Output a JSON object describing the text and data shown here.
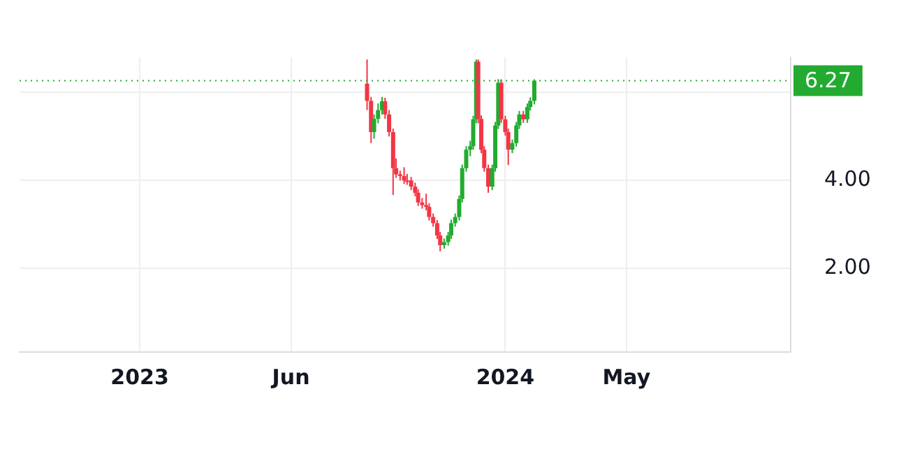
{
  "chart_data": {
    "type": "candlestick",
    "x": [
      "2023-08-16",
      "2023-08-20",
      "2023-08-23",
      "2023-08-27",
      "2023-08-31",
      "2023-09-03",
      "2023-09-07",
      "2023-09-11",
      "2023-09-14",
      "2023-09-18",
      "2023-09-22",
      "2023-09-25",
      "2023-09-29",
      "2023-10-03",
      "2023-10-06",
      "2023-10-10",
      "2023-10-14",
      "2023-10-17",
      "2023-10-21",
      "2023-10-25",
      "2023-10-28",
      "2023-11-01",
      "2023-11-05",
      "2023-11-08",
      "2023-11-12",
      "2023-11-16",
      "2023-11-19",
      "2023-11-23",
      "2023-11-27",
      "2023-11-30",
      "2023-12-03",
      "2023-12-05",
      "2023-12-08",
      "2023-12-11",
      "2023-12-15",
      "2023-12-19",
      "2023-12-22",
      "2023-12-25",
      "2023-12-28",
      "2024-01-01",
      "2024-01-04",
      "2024-01-08",
      "2024-01-12",
      "2024-01-15",
      "2024-01-19",
      "2024-01-23",
      "2024-01-26",
      "2024-01-30"
    ],
    "ohlc": [
      [
        6.2,
        6.75,
        5.6,
        5.81
      ],
      [
        5.81,
        5.9,
        4.85,
        5.1
      ],
      [
        5.1,
        5.5,
        4.95,
        5.4
      ],
      [
        5.4,
        5.75,
        5.3,
        5.6
      ],
      [
        5.6,
        5.9,
        5.5,
        5.8
      ],
      [
        5.8,
        5.88,
        5.4,
        5.5
      ],
      [
        5.5,
        5.6,
        5.0,
        5.1
      ],
      [
        5.1,
        5.18,
        3.67,
        4.28
      ],
      [
        4.28,
        4.5,
        4.06,
        4.14
      ],
      [
        4.14,
        4.22,
        4.0,
        4.1
      ],
      [
        4.1,
        4.3,
        3.92,
        4.0
      ],
      [
        4.0,
        4.15,
        3.9,
        4.0
      ],
      [
        4.0,
        4.08,
        3.78,
        3.86
      ],
      [
        3.86,
        3.95,
        3.64,
        3.72
      ],
      [
        3.72,
        3.8,
        3.42,
        3.5
      ],
      [
        3.5,
        3.6,
        3.36,
        3.44
      ],
      [
        3.44,
        3.7,
        3.32,
        3.4
      ],
      [
        3.4,
        3.48,
        3.09,
        3.17
      ],
      [
        3.17,
        3.25,
        2.95,
        3.03
      ],
      [
        3.03,
        3.1,
        2.67,
        2.75
      ],
      [
        2.75,
        2.83,
        2.39,
        2.53
      ],
      [
        2.53,
        2.68,
        2.45,
        2.6
      ],
      [
        2.6,
        2.83,
        2.52,
        2.75
      ],
      [
        2.75,
        3.11,
        2.67,
        3.03
      ],
      [
        3.03,
        3.25,
        2.95,
        3.17
      ],
      [
        3.17,
        3.66,
        3.09,
        3.58
      ],
      [
        3.58,
        4.36,
        3.5,
        4.28
      ],
      [
        4.28,
        4.78,
        4.2,
        4.7
      ],
      [
        4.7,
        4.9,
        4.55,
        4.78
      ],
      [
        4.78,
        5.47,
        4.7,
        5.39
      ],
      [
        5.39,
        6.75,
        5.3,
        6.7
      ],
      [
        6.7,
        6.75,
        5.3,
        5.4
      ],
      [
        5.4,
        5.48,
        4.62,
        4.7
      ],
      [
        4.7,
        4.78,
        4.2,
        4.28
      ],
      [
        4.28,
        4.36,
        3.72,
        3.86
      ],
      [
        3.86,
        4.36,
        3.78,
        4.28
      ],
      [
        4.28,
        5.33,
        4.2,
        5.25
      ],
      [
        5.25,
        6.3,
        5.17,
        6.22
      ],
      [
        6.22,
        6.3,
        5.31,
        5.39
      ],
      [
        5.39,
        5.47,
        5.02,
        5.1
      ],
      [
        5.1,
        5.18,
        4.35,
        4.7
      ],
      [
        4.7,
        4.93,
        4.62,
        4.85
      ],
      [
        4.85,
        5.33,
        4.77,
        5.25
      ],
      [
        5.25,
        5.58,
        5.17,
        5.5
      ],
      [
        5.5,
        5.58,
        5.31,
        5.39
      ],
      [
        5.39,
        5.75,
        5.31,
        5.67
      ],
      [
        5.67,
        5.89,
        5.59,
        5.81
      ],
      [
        5.81,
        6.3,
        5.73,
        6.27
      ]
    ],
    "colors": [
      "#f23645",
      "#f23645",
      "#22ab30",
      "#22ab30",
      "#22ab30",
      "#f23645",
      "#f23645",
      "#f23645",
      "#f23645",
      "#f23645",
      "#f23645",
      "#f23645",
      "#f23645",
      "#f23645",
      "#f23645",
      "#f23645",
      "#f23645",
      "#f23645",
      "#f23645",
      "#f23645",
      "#f23645",
      "#22ab30",
      "#22ab30",
      "#22ab30",
      "#22ab30",
      "#22ab30",
      "#22ab30",
      "#22ab30",
      "#22ab30",
      "#22ab30",
      "#22ab30",
      "#f23645",
      "#f23645",
      "#f23645",
      "#f23645",
      "#22ab30",
      "#22ab30",
      "#22ab30",
      "#f23645",
      "#f23645",
      "#f23645",
      "#22ab30",
      "#22ab30",
      "#22ab30",
      "#f23645",
      "#22ab30",
      "#22ab30",
      "#22ab30"
    ],
    "xlim": [
      "2022-09-03",
      "2024-10-12"
    ],
    "xticks": [
      {
        "value": "2023-01-01",
        "label": "2023"
      },
      {
        "value": "2023-06-01",
        "label": "Jun"
      },
      {
        "value": "2024-01-01",
        "label": "2024"
      },
      {
        "value": "2024-05-01",
        "label": "May"
      }
    ],
    "ylim": [
      0.1,
      6.8
    ],
    "yticks": [
      {
        "value": 2,
        "label": "2.00"
      },
      {
        "value": 4,
        "label": "4.00"
      },
      {
        "value": 6,
        "label": null
      }
    ],
    "ref_lines": [
      {
        "axis": "y",
        "value": 6.27,
        "label": "6.27",
        "color": "#22ab30",
        "line_style": "dotted"
      }
    ],
    "grid": true,
    "legend": false
  }
}
